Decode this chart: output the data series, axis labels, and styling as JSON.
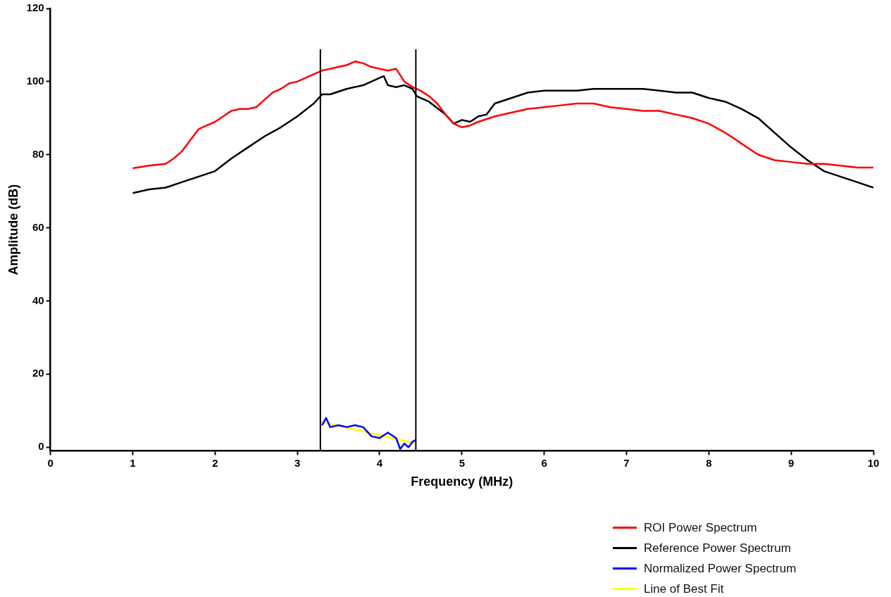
{
  "chart_data": {
    "type": "line",
    "xlabel": "Frequency (MHz)",
    "ylabel": "Amplitude (dB)",
    "xlim": [
      0,
      10
    ],
    "xticks": [
      0,
      1,
      2,
      3,
      4,
      5,
      6,
      7,
      8,
      9,
      10
    ],
    "ylim": [
      -1,
      120
    ],
    "yticks": [
      0,
      20,
      40,
      60,
      80,
      100,
      120
    ],
    "grid": false,
    "legend": "bottom right",
    "marker": "none",
    "line_style": "solid",
    "ref_lines": [
      {
        "axis": "x",
        "value": 3.28,
        "color": "#000000"
      },
      {
        "axis": "x",
        "value": 4.44,
        "color": "#000000"
      }
    ],
    "series": [
      {
        "name": "ROI Power Spectrum",
        "color": "#ff0000",
        "x": [
          1.0,
          1.2,
          1.4,
          1.5,
          1.6,
          1.7,
          1.8,
          1.9,
          2.0,
          2.1,
          2.2,
          2.3,
          2.4,
          2.5,
          2.6,
          2.7,
          2.8,
          2.9,
          3.0,
          3.1,
          3.2,
          3.3,
          3.4,
          3.5,
          3.6,
          3.7,
          3.8,
          3.9,
          4.0,
          4.1,
          4.2,
          4.3,
          4.4,
          4.5,
          4.6,
          4.7,
          4.8,
          4.9,
          5.0,
          5.1,
          5.2,
          5.4,
          5.6,
          5.8,
          6.0,
          6.2,
          6.4,
          6.6,
          6.8,
          7.0,
          7.2,
          7.4,
          7.6,
          7.8,
          8.0,
          8.2,
          8.4,
          8.6,
          8.8,
          9.0,
          9.2,
          9.4,
          9.6,
          9.8,
          10.0
        ],
        "values": [
          76.3,
          77,
          77.5,
          79,
          81,
          84,
          87,
          88,
          89,
          90.5,
          92,
          92.5,
          92.5,
          93,
          95,
          97,
          98,
          99.5,
          100,
          101,
          102,
          103,
          103.5,
          104,
          104.5,
          105.5,
          105,
          104,
          103.5,
          103,
          103.5,
          100,
          98.5,
          97.5,
          96,
          94,
          91,
          88.5,
          87.5,
          88,
          89,
          90.5,
          91.5,
          92.5,
          93,
          93.5,
          94,
          94,
          93,
          92.5,
          92,
          92,
          91,
          90,
          88.5,
          86,
          83,
          80,
          78.5,
          78,
          77.5,
          77.5,
          77,
          76.5,
          76.5
        ]
      },
      {
        "name": "Reference Power Spectrum",
        "color": "#000000",
        "x": [
          1.0,
          1.2,
          1.4,
          1.6,
          1.8,
          2.0,
          2.2,
          2.4,
          2.6,
          2.8,
          3.0,
          3.2,
          3.3,
          3.4,
          3.6,
          3.8,
          3.9,
          4.0,
          4.05,
          4.1,
          4.2,
          4.3,
          4.4,
          4.45,
          4.6,
          4.8,
          4.9,
          5.0,
          5.1,
          5.2,
          5.3,
          5.4,
          5.6,
          5.8,
          6.0,
          6.2,
          6.4,
          6.6,
          6.8,
          7.0,
          7.2,
          7.4,
          7.6,
          7.8,
          8.0,
          8.2,
          8.4,
          8.6,
          8.8,
          9.0,
          9.2,
          9.4,
          9.6,
          9.8,
          10.0
        ],
        "values": [
          69.5,
          70.5,
          71,
          72.5,
          74,
          75.5,
          79,
          82,
          85,
          87.5,
          90.5,
          94,
          96.5,
          96.5,
          98,
          99,
          100,
          101,
          101.5,
          99,
          98.5,
          99,
          98,
          96,
          94.5,
          91,
          88.5,
          89.5,
          89,
          90.5,
          91,
          94,
          95.5,
          97,
          97.5,
          97.5,
          97.5,
          98,
          98,
          98,
          98,
          97.5,
          97,
          97,
          95.5,
          94.5,
          92.5,
          90,
          86,
          82,
          78.5,
          75.5,
          74,
          72.5,
          71
        ]
      },
      {
        "name": "Normalized Power Spectrum",
        "color": "#0000ff",
        "x": [
          3.3,
          3.35,
          3.4,
          3.5,
          3.6,
          3.7,
          3.8,
          3.9,
          4.0,
          4.1,
          4.2,
          4.25,
          4.3,
          4.35,
          4.4,
          4.44
        ],
        "values": [
          6,
          8,
          5.5,
          6,
          5.5,
          6,
          5.5,
          3,
          2.5,
          4,
          2.5,
          -0.5,
          1,
          0,
          1.5,
          2
        ]
      },
      {
        "name": "Line of Best Fit",
        "color": "#ffff00",
        "x": [
          3.28,
          4.44
        ],
        "values": [
          7,
          1
        ]
      }
    ]
  }
}
